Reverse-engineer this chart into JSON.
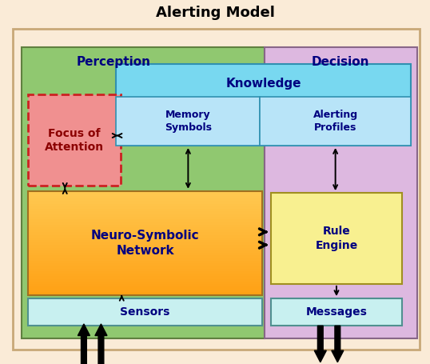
{
  "title": "Alerting Model",
  "title_fontsize": 13,
  "bg_color": "#faebd7",
  "outer_border_color": "#c8a878",
  "perception_color": "#90c870",
  "perception_border": "#608040",
  "decision_color": "#ddb8e0",
  "decision_border": "#886688",
  "knowledge_top_color": "#78d8f0",
  "knowledge_top_border": "#3090b0",
  "knowledge_sub_color": "#b8e4f8",
  "knowledge_sub_border": "#3090b0",
  "focus_color": "#f09090",
  "focus_border": "#cc2222",
  "neuro_color_top": "#ffe080",
  "neuro_color_bot": "#f0a030",
  "neuro_border": "#a07020",
  "rule_color": "#f8f090",
  "rule_border": "#a09020",
  "sensors_color": "#c8f0f0",
  "sensors_border": "#509090",
  "messages_color": "#c8f0f0",
  "messages_border": "#509090",
  "label_color_dark": "#000080",
  "arrow_color": "#000000",
  "boxes": {
    "outer": [
      0.03,
      0.04,
      0.945,
      0.88
    ],
    "perception": [
      0.05,
      0.07,
      0.565,
      0.8
    ],
    "decision": [
      0.615,
      0.07,
      0.355,
      0.8
    ],
    "knowledge": [
      0.27,
      0.6,
      0.685,
      0.225
    ],
    "mem_sym": [
      0.27,
      0.6,
      0.335,
      0.135
    ],
    "alert_prof": [
      0.605,
      0.6,
      0.35,
      0.135
    ],
    "focus": [
      0.065,
      0.49,
      0.215,
      0.25
    ],
    "neuro": [
      0.065,
      0.19,
      0.545,
      0.285
    ],
    "rule": [
      0.63,
      0.22,
      0.305,
      0.25
    ],
    "sensors": [
      0.065,
      0.105,
      0.545,
      0.075
    ],
    "messages": [
      0.63,
      0.105,
      0.305,
      0.075
    ]
  }
}
